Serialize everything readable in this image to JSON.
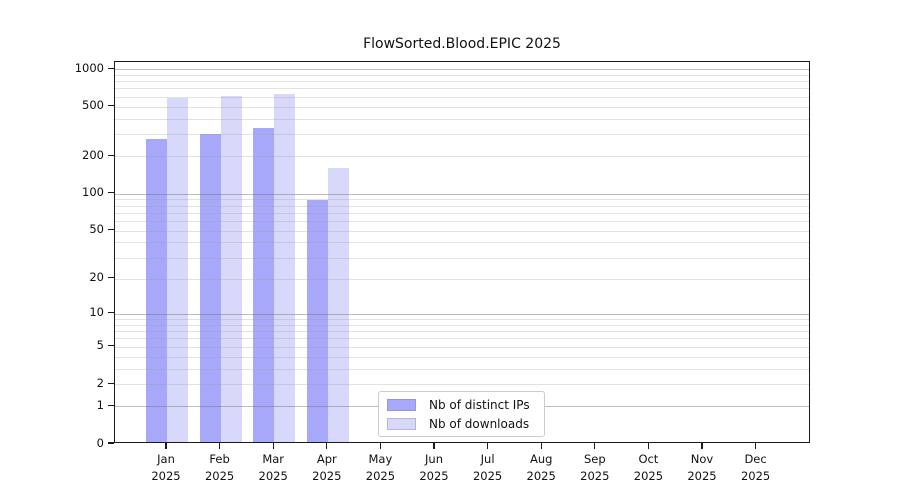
{
  "chart_data": {
    "type": "bar",
    "title": "FlowSorted.Blood.EPIC 2025",
    "categories": [
      "Jan",
      "Feb",
      "Mar",
      "Apr",
      "May",
      "Jun",
      "Jul",
      "Aug",
      "Sep",
      "Oct",
      "Nov",
      "Dec"
    ],
    "category_year": "2025",
    "series": [
      {
        "name": "Nb of distinct IPs",
        "color": "#a8a8fa",
        "values": [
          265,
          292,
          322,
          85,
          null,
          null,
          null,
          null,
          null,
          null,
          null,
          null
        ]
      },
      {
        "name": "Nb of downloads",
        "color": "#d8d8fa",
        "values": [
          565,
          588,
          605,
          155,
          null,
          null,
          null,
          null,
          null,
          null,
          null,
          null
        ]
      }
    ],
    "xlabel": "",
    "ylabel": "",
    "yscale": "log10(value+1)",
    "ylim": [
      0,
      1140
    ],
    "ytick_values": [
      0,
      1,
      2,
      5,
      10,
      20,
      50,
      100,
      200,
      500,
      1000
    ],
    "ytick_labels": [
      "0",
      "1",
      "2",
      "5",
      "10",
      "20",
      "50",
      "100",
      "200",
      "500",
      "1000"
    ],
    "grid": "horizontal, major and minor, on",
    "legend_position": "inside bottom-center",
    "colors": {
      "background": "#ffffff",
      "axis_spine": "#1a1a1a",
      "major_grid": "#b3b3b3",
      "minor_grid": "#e3e3e3",
      "legend_border": "#cccccc"
    }
  }
}
